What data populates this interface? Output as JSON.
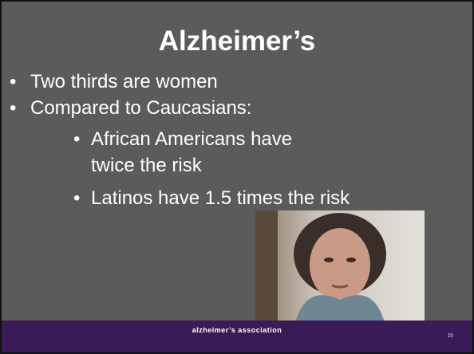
{
  "slide": {
    "title": "Alzheimer’s",
    "bullets": [
      {
        "text": "Two thirds are women"
      },
      {
        "text": "Compared to Caucasians:",
        "sub": [
          {
            "text": "African Americans have twice the risk"
          },
          {
            "text": "Latinos have 1.5 times the risk"
          }
        ]
      }
    ],
    "footer": {
      "logo": "alzheimer’s association",
      "page": "15"
    }
  }
}
